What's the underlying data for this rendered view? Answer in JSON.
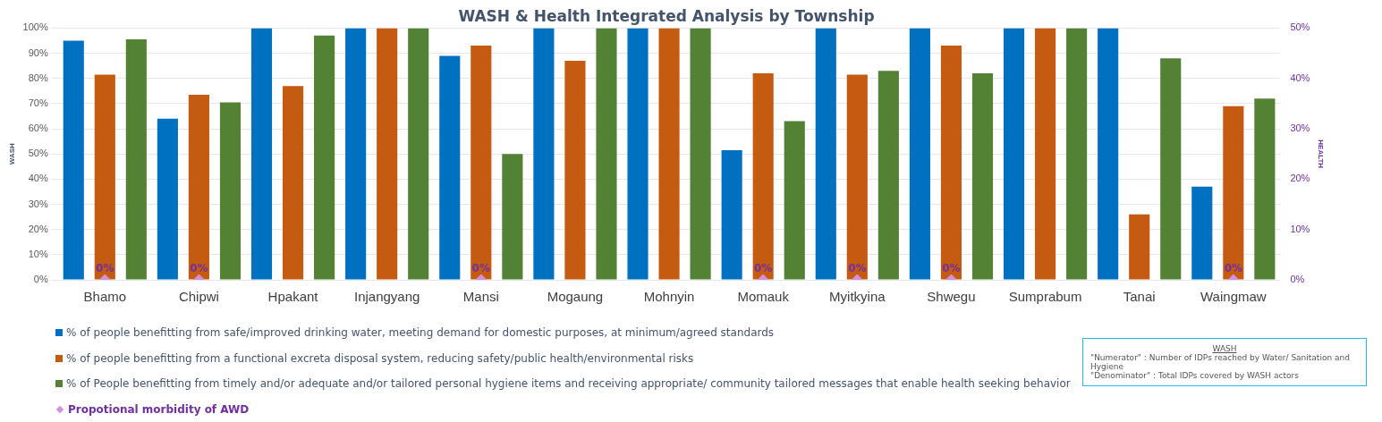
{
  "chart_data": {
    "type": "bar",
    "title": "WASH & Health Integrated Analysis by Township",
    "ylabel": "WASH",
    "y2label": "HEALTH",
    "categories": [
      "Bhamo",
      "Chipwi",
      "Hpakant",
      "Injangyang",
      "Mansi",
      "Mogaung",
      "Mohnyin",
      "Momauk",
      "Myitkyina",
      "Shwegu",
      "Sumprabum",
      "Tanai",
      "Waingmaw"
    ],
    "series": [
      {
        "name": "% of people benefitting from safe/improved drinking water, meeting demand for domestic purposes, at minimum/agreed standards",
        "color": "#0070c0",
        "values": [
          95,
          64,
          100,
          100,
          89,
          100,
          100,
          51.5,
          100,
          100,
          100,
          100,
          37
        ]
      },
      {
        "name": " % of people benefitting from a functional excreta disposal system, reducing safety/public health/environmental risks",
        "color": "#c55a11",
        "values": [
          81.5,
          73.5,
          77,
          100,
          93,
          87,
          100,
          82,
          81.5,
          93,
          100,
          26,
          69
        ]
      },
      {
        "name": "% of People benefitting from timely and/or adequate and/or tailored personal hygiene items and receiving appropriate/ community tailored messages that enable health seeking behavior",
        "color": "#548235",
        "values": [
          95.5,
          70.5,
          97,
          100,
          50,
          100,
          100,
          63,
          83,
          82,
          100,
          88,
          72
        ]
      },
      {
        "name": "Propotional morbidity of AWD",
        "type": "scatter",
        "axis": "y2",
        "marker": "diamond",
        "color": "#d291d9",
        "x": [
          "Bhamo",
          "Chipwi",
          "Mansi",
          "Momauk",
          "Myitkyina",
          "Shwegu",
          "Waingmaw"
        ],
        "values": [
          0,
          0,
          0,
          0,
          0,
          0,
          0
        ],
        "value_labels": [
          "0%",
          "0%",
          "0%",
          "0%",
          "0%",
          "0%",
          "0%"
        ]
      }
    ],
    "ylim": [
      0,
      100
    ],
    "yticks": [
      {
        "value": 0,
        "label": "0%"
      },
      {
        "value": 10,
        "label": "10%"
      },
      {
        "value": 20,
        "label": "20%"
      },
      {
        "value": 30,
        "label": "30%"
      },
      {
        "value": 40,
        "label": "40%"
      },
      {
        "value": 50,
        "label": "50%"
      },
      {
        "value": 60,
        "label": "60%"
      },
      {
        "value": 70,
        "label": "70%"
      },
      {
        "value": 80,
        "label": "80%"
      },
      {
        "value": 90,
        "label": "90%"
      },
      {
        "value": 100,
        "label": "100%"
      }
    ],
    "y2lim": [
      0,
      50
    ],
    "y2ticks": [
      {
        "value": 0,
        "label": "0%"
      },
      {
        "value": 10,
        "label": "10%"
      },
      {
        "value": 20,
        "label": "20%"
      },
      {
        "value": 30,
        "label": "30%"
      },
      {
        "value": 40,
        "label": "40%"
      },
      {
        "value": 50,
        "label": "50%"
      }
    ],
    "grid": "y",
    "legend": "bottom",
    "annotations": [
      "WASH",
      "\"Numerator\" : Number of IDPs reached by Water/ Sanitation and Hygiene",
      "\"Denominator\" : Total IDPs covered by WASH actors"
    ]
  }
}
